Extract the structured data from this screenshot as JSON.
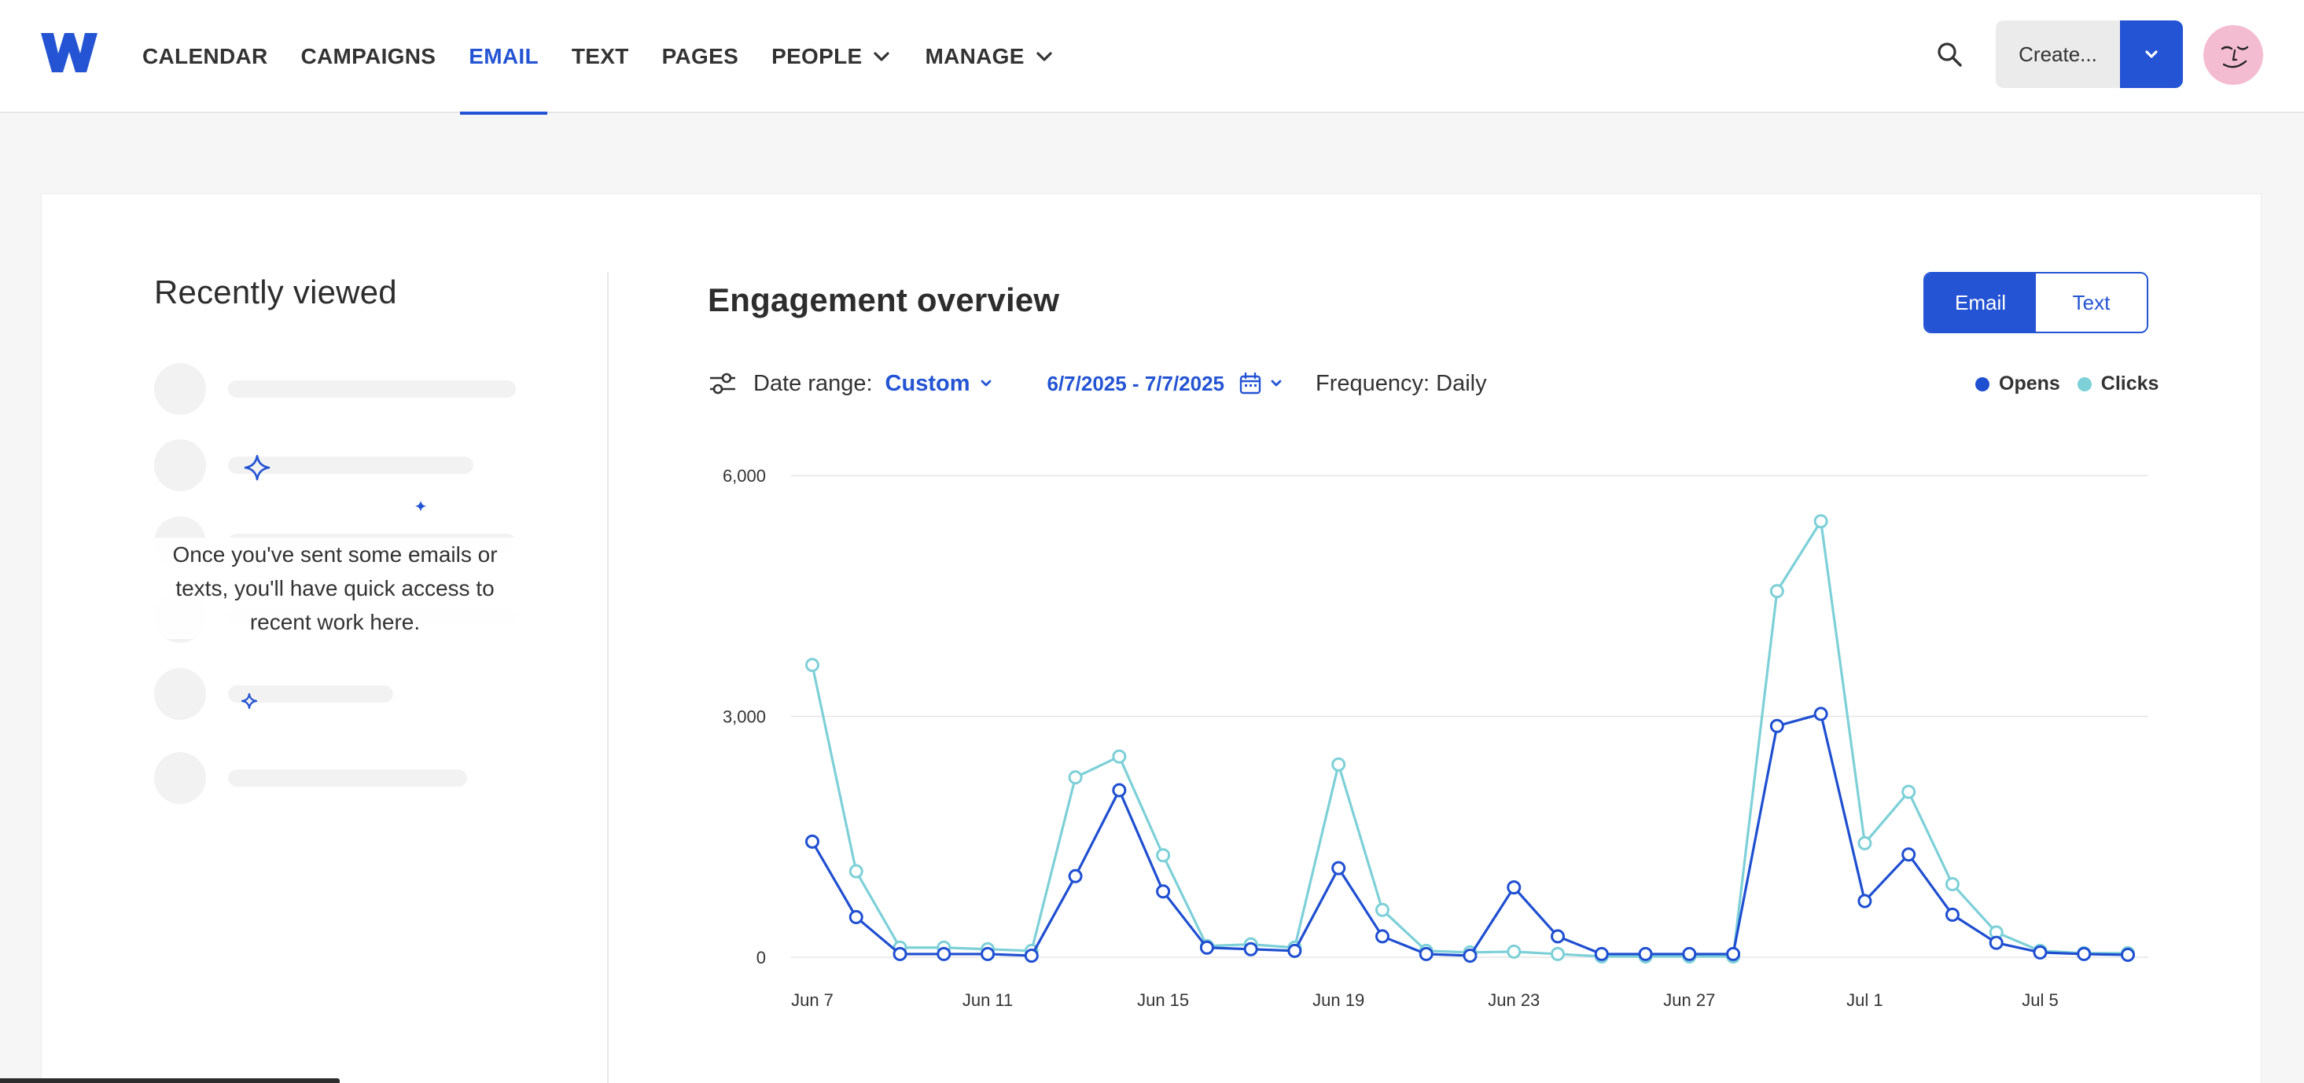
{
  "nav": {
    "items": [
      {
        "label": "CALENDAR",
        "name": "nav-calendar",
        "active": false,
        "dropdown": false
      },
      {
        "label": "CAMPAIGNS",
        "name": "nav-campaigns",
        "active": false,
        "dropdown": false
      },
      {
        "label": "EMAIL",
        "name": "nav-email",
        "active": true,
        "dropdown": false
      },
      {
        "label": "TEXT",
        "name": "nav-text",
        "active": false,
        "dropdown": false
      },
      {
        "label": "PAGES",
        "name": "nav-pages",
        "active": false,
        "dropdown": false
      },
      {
        "label": "PEOPLE",
        "name": "nav-people",
        "active": false,
        "dropdown": true
      },
      {
        "label": "MANAGE",
        "name": "nav-manage",
        "active": false,
        "dropdown": true
      }
    ],
    "create_label": "Create...",
    "accent": "#2454d3"
  },
  "recently_viewed": {
    "title": "Recently viewed",
    "empty_message": "Once you've sent some emails or texts, you'll have quick access to recent work here."
  },
  "engagement": {
    "title": "Engagement overview",
    "toggle": [
      {
        "label": "Email",
        "selected": true
      },
      {
        "label": "Text",
        "selected": false
      }
    ],
    "date_range_label": "Date range:",
    "date_range_value": "Custom",
    "dates": "6/7/2025 - 7/7/2025",
    "frequency": "Frequency: Daily"
  },
  "chart_data": {
    "type": "line",
    "x": [
      "Jun 7",
      "Jun 8",
      "Jun 9",
      "Jun 10",
      "Jun 11",
      "Jun 12",
      "Jun 13",
      "Jun 14",
      "Jun 15",
      "Jun 16",
      "Jun 17",
      "Jun 18",
      "Jun 19",
      "Jun 20",
      "Jun 21",
      "Jun 22",
      "Jun 23",
      "Jun 24",
      "Jun 25",
      "Jun 26",
      "Jun 27",
      "Jun 28",
      "Jun 29",
      "Jun 30",
      "Jul 1",
      "Jul 2",
      "Jul 3",
      "Jul 4",
      "Jul 5",
      "Jul 6",
      "Jul 7"
    ],
    "xticks": [
      "Jun 7",
      "Jun 11",
      "Jun 15",
      "Jun 19",
      "Jun 23",
      "Jun 27",
      "Jul 1",
      "Jul 5"
    ],
    "yticks": [
      0,
      3000,
      6000
    ],
    "ytick_labels": [
      "0",
      "3,000",
      "6,000"
    ],
    "ylim": [
      0,
      6000
    ],
    "grid": true,
    "legend_position": "top-right",
    "series": [
      {
        "name": "Opens",
        "color": "#1f4fd1",
        "values": [
          1440,
          500,
          40,
          40,
          40,
          20,
          1010,
          2080,
          820,
          120,
          100,
          80,
          1110,
          260,
          40,
          20,
          870,
          260,
          40,
          40,
          40,
          40,
          2880,
          3030,
          700,
          1280,
          530,
          180,
          60,
          40,
          30
        ]
      },
      {
        "name": "Clicks",
        "color": "#7dd0d8",
        "values": [
          3640,
          1070,
          120,
          120,
          100,
          80,
          2240,
          2500,
          1270,
          140,
          160,
          120,
          2400,
          590,
          80,
          60,
          70,
          40,
          10,
          10,
          10,
          10,
          4560,
          5430,
          1420,
          2060,
          910,
          310,
          80,
          50,
          50
        ]
      }
    ]
  }
}
